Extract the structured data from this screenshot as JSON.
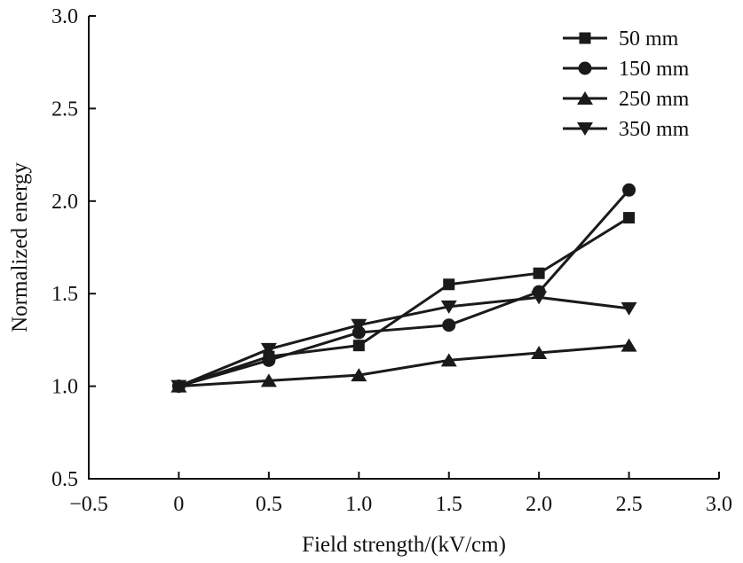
{
  "chart_data": {
    "type": "line",
    "xlabel": "Field strength/(kV/cm)",
    "ylabel": "Normalized energy",
    "xlim": [
      -0.5,
      3.0
    ],
    "ylim": [
      0.5,
      3.0
    ],
    "xticks": [
      -0.5,
      0,
      0.5,
      1.0,
      1.5,
      2.0,
      2.5,
      3.0
    ],
    "xtick_labels": [
      "−0.5",
      "0",
      "0.5",
      "1.0",
      "1.5",
      "2.0",
      "2.5",
      "3.0"
    ],
    "yticks": [
      0.5,
      1.0,
      1.5,
      2.0,
      2.5,
      3.0
    ],
    "ytick_labels": [
      "0.5",
      "1.0",
      "1.5",
      "2.0",
      "2.5",
      "3.0"
    ],
    "grid": false,
    "legend_position": "top-right",
    "x": [
      0,
      0.5,
      1.0,
      1.5,
      2.0,
      2.5
    ],
    "series": [
      {
        "name": "50 mm",
        "marker": "square",
        "values": [
          1.0,
          1.16,
          1.22,
          1.55,
          1.61,
          1.91
        ]
      },
      {
        "name": "150 mm",
        "marker": "circle",
        "values": [
          1.0,
          1.14,
          1.29,
          1.33,
          1.51,
          2.06
        ]
      },
      {
        "name": "250 mm",
        "marker": "triangle-up",
        "values": [
          1.0,
          1.03,
          1.06,
          1.14,
          1.18,
          1.22
        ]
      },
      {
        "name": "350 mm",
        "marker": "triangle-down",
        "values": [
          1.0,
          1.2,
          1.33,
          1.43,
          1.48,
          1.42
        ]
      }
    ]
  }
}
